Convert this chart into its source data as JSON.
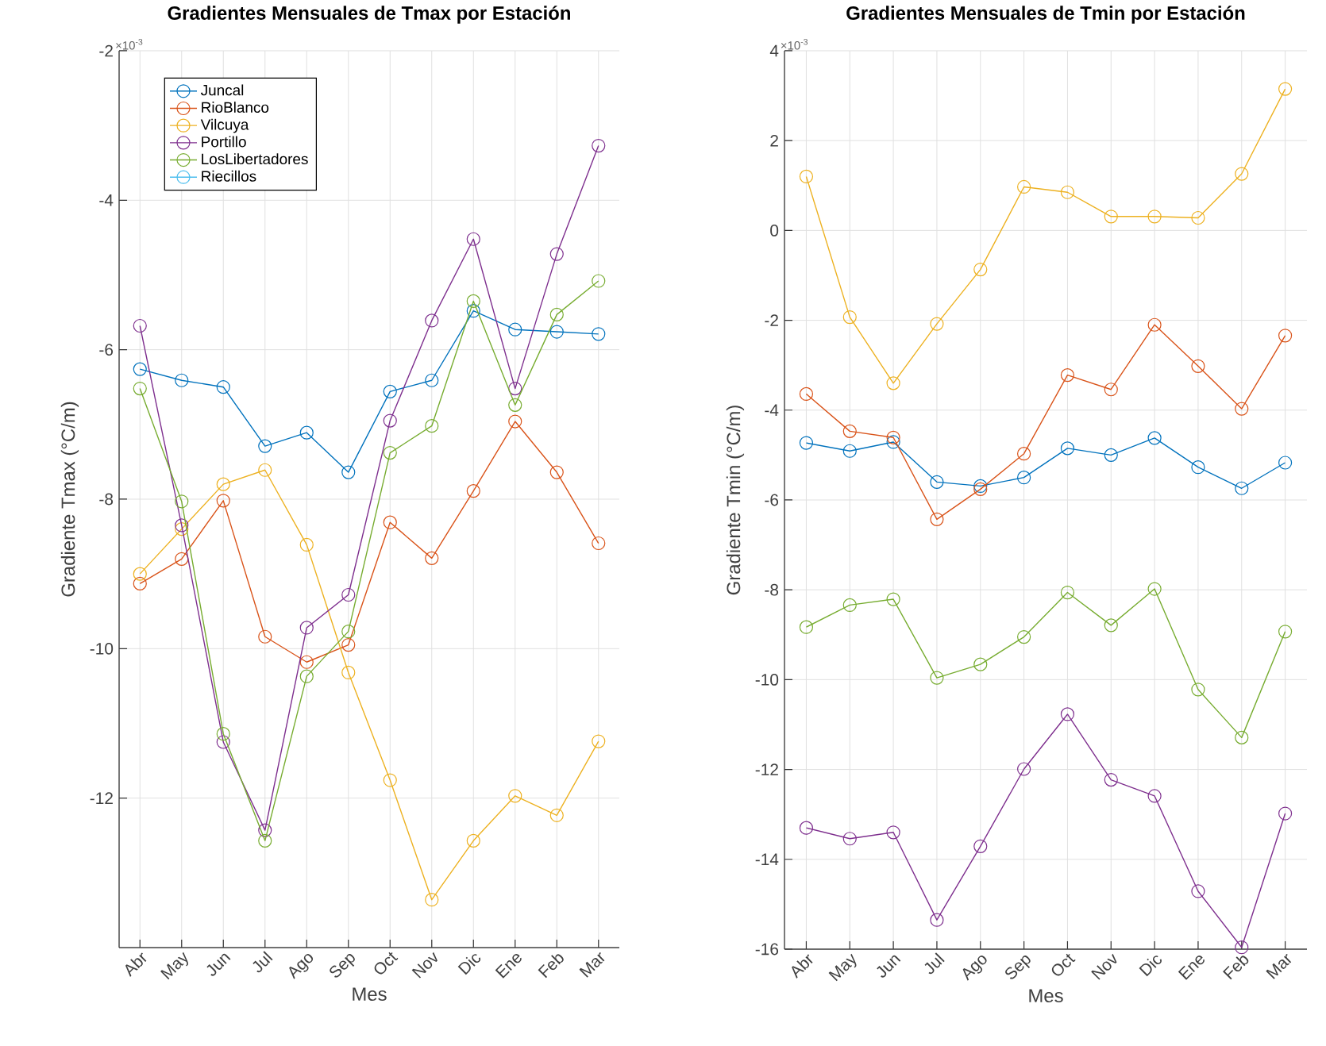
{
  "chart_data": [
    {
      "type": "line",
      "title": "Gradientes Mensuales de Tmax por Estación",
      "xlabel": "Mes",
      "ylabel": "Gradiente Tmax (°C/m)",
      "annotations": [
        "×10$^{-3}$"
      ],
      "categories": [
        "Abr",
        "May",
        "Jun",
        "Jul",
        "Ago",
        "Sep",
        "Oct",
        "Nov",
        "Dic",
        "Ene",
        "Feb",
        "Mar"
      ],
      "series": [
        {
          "name": "Juncal",
          "color": "#0072bd",
          "values": [
            -6.26,
            -6.41,
            -6.5,
            -7.29,
            -7.11,
            -7.64,
            -6.56,
            -6.41,
            -5.48,
            -5.73,
            -5.76,
            -5.79
          ]
        },
        {
          "name": "RioBlanco",
          "color": "#d95319",
          "values": [
            -9.13,
            -8.8,
            -8.02,
            -9.84,
            -10.18,
            -9.95,
            -8.31,
            -8.79,
            -7.89,
            -6.96,
            -7.64,
            -8.59
          ]
        },
        {
          "name": "Vilcuya",
          "color": "#edb120",
          "values": [
            -9.0,
            -8.4,
            -7.8,
            -7.61,
            -8.61,
            -10.32,
            -11.76,
            -13.36,
            -12.57,
            -11.97,
            -12.23,
            -11.24
          ]
        },
        {
          "name": "Portillo",
          "color": "#7e2f8e",
          "values": [
            -5.68,
            -8.35,
            -11.25,
            -12.43,
            -9.72,
            -9.28,
            -6.95,
            -5.61,
            -4.52,
            -6.52,
            -4.72,
            -3.27
          ]
        },
        {
          "name": "LosLibertadores",
          "color": "#77ac30",
          "values": [
            -6.52,
            -8.03,
            -11.14,
            -12.57,
            -10.37,
            -9.77,
            -7.38,
            -7.02,
            -5.35,
            -6.74,
            -5.53,
            -5.08
          ]
        },
        {
          "name": "Riecillos",
          "color": "#4dbeee",
          "values": [
            null,
            null,
            null,
            null,
            null,
            null,
            null,
            null,
            null,
            null,
            null,
            null
          ]
        }
      ],
      "ylim": [
        -14,
        -2
      ],
      "yticks": [
        -12,
        -10,
        -8,
        -6,
        -4,
        -2
      ],
      "grid": true,
      "legend": "top left",
      "marker": "circle"
    },
    {
      "type": "line",
      "title": "Gradientes Mensuales de Tmin por Estación",
      "xlabel": "Mes",
      "ylabel": "Gradiente Tmin (°C/m)",
      "annotations": [
        "×10$^{-3}$"
      ],
      "categories": [
        "Abr",
        "May",
        "Jun",
        "Jul",
        "Ago",
        "Sep",
        "Oct",
        "Nov",
        "Dic",
        "Ene",
        "Feb",
        "Mar"
      ],
      "series": [
        {
          "color": "#0072bd",
          "values": [
            -4.73,
            -4.91,
            -4.71,
            -5.6,
            -5.69,
            -5.5,
            -4.85,
            -5.0,
            -4.62,
            -5.27,
            -5.74,
            -5.17
          ]
        },
        {
          "color": "#d95319",
          "values": [
            -3.64,
            -4.47,
            -4.61,
            -6.43,
            -5.76,
            -4.97,
            -3.22,
            -3.54,
            -2.1,
            -3.02,
            -3.97,
            -2.34
          ]
        },
        {
          "color": "#edb120",
          "values": [
            1.2,
            -1.93,
            -3.4,
            -2.08,
            -0.87,
            0.97,
            0.85,
            0.31,
            0.31,
            0.28,
            1.26,
            3.15
          ]
        },
        {
          "color": "#7e2f8e",
          "values": [
            -13.3,
            -13.54,
            -13.4,
            -15.35,
            -13.71,
            -11.99,
            -10.77,
            -12.23,
            -12.59,
            -14.71,
            -15.96,
            -12.98
          ]
        },
        {
          "color": "#77ac30",
          "values": [
            -8.83,
            -8.34,
            -8.21,
            -9.96,
            -9.66,
            -9.05,
            -8.06,
            -8.79,
            -7.98,
            -10.22,
            -11.29,
            -8.93
          ]
        }
      ],
      "ylim": [
        -16,
        4
      ],
      "yticks": [
        -16,
        -14,
        -12,
        -10,
        -8,
        -6,
        -4,
        -2,
        0,
        2,
        4
      ],
      "grid": true,
      "legend": false,
      "marker": "circle"
    }
  ]
}
